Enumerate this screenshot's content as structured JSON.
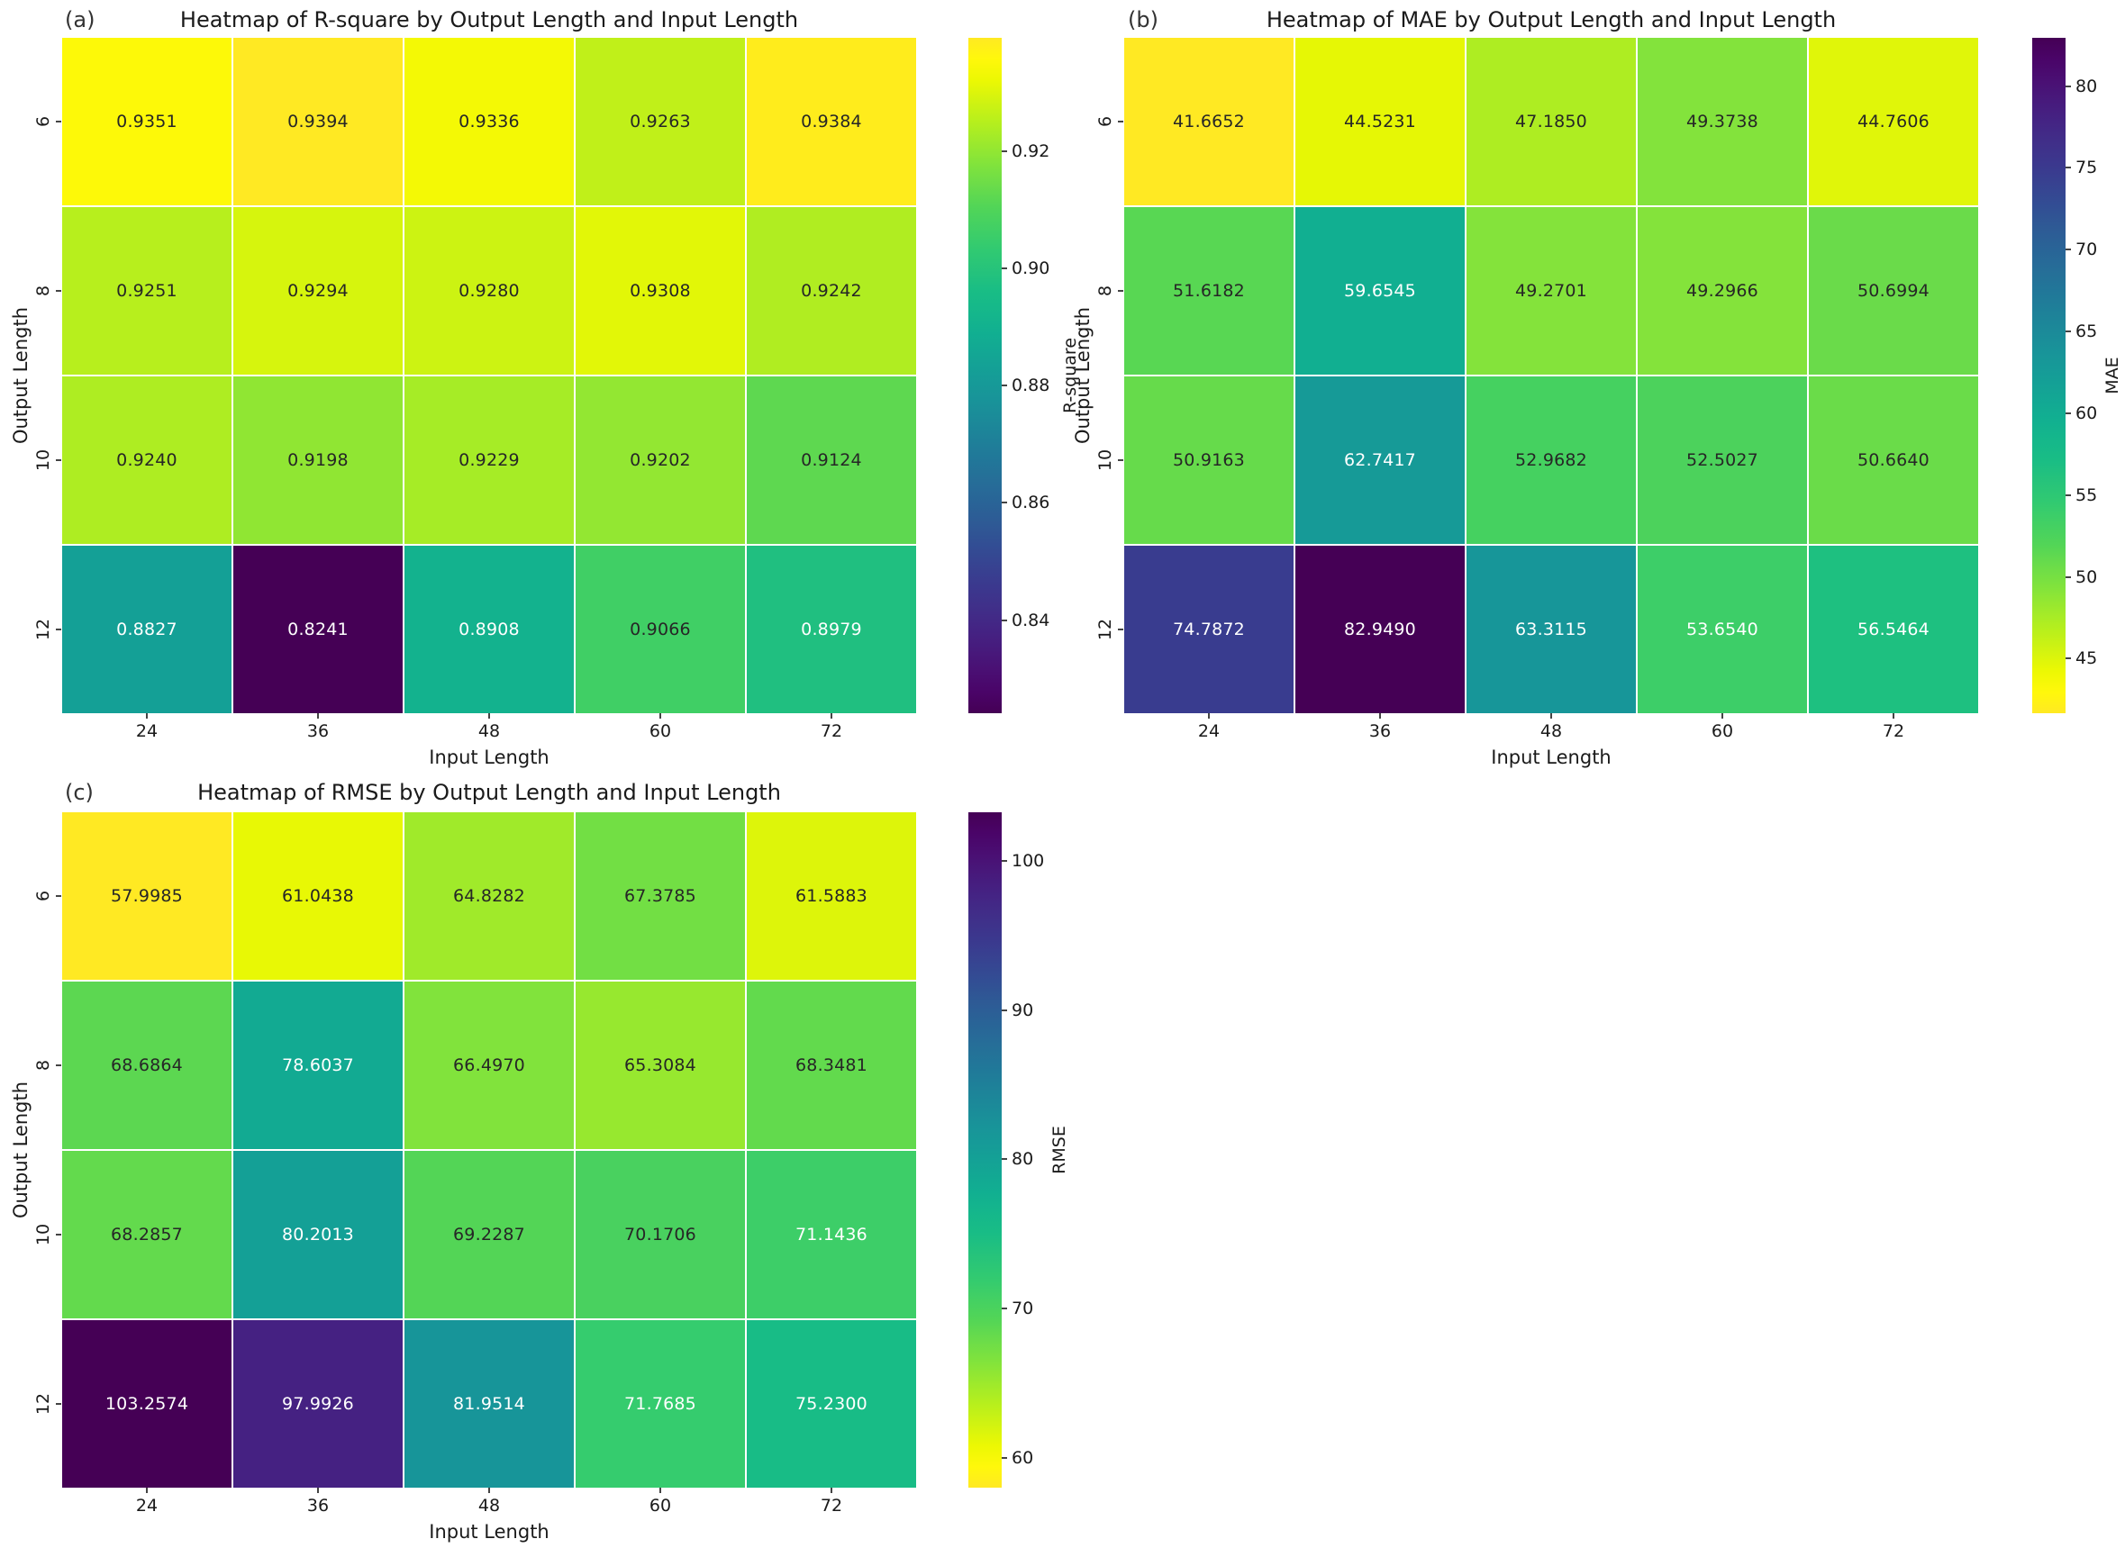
{
  "figure": {
    "background": "#ffffff"
  },
  "colors": {
    "annotation_dark": "#262626",
    "annotation_light": "#ffffff",
    "colormap_low": "#440154",
    "colormap_high": "#fde725"
  },
  "chart_data": [
    {
      "type": "heatmap",
      "panel_label": "(a)",
      "title": "Heatmap of R-square by Output Length and Input Length",
      "xlabel": "Input Length",
      "ylabel": "Output Length",
      "x_categories": [
        "24",
        "36",
        "48",
        "60",
        "72"
      ],
      "y_categories": [
        "6",
        "8",
        "10",
        "12"
      ],
      "values": [
        [
          "0.9351",
          "0.9394",
          "0.9336",
          "0.9263",
          "0.9384"
        ],
        [
          "0.9251",
          "0.9294",
          "0.9280",
          "0.9308",
          "0.9242"
        ],
        [
          "0.9240",
          "0.9198",
          "0.9229",
          "0.9202",
          "0.9124"
        ],
        [
          "0.8827",
          "0.8241",
          "0.8908",
          "0.9066",
          "0.8979"
        ]
      ],
      "vmin": 0.8241,
      "vmax": 0.9394,
      "colormap": "viridis",
      "colormap_reversed": false,
      "colorbar_label": "R-square",
      "colorbar_ticks": [
        "0.92",
        "0.90",
        "0.88",
        "0.86",
        "0.84"
      ]
    },
    {
      "type": "heatmap",
      "panel_label": "(b)",
      "title": "Heatmap of MAE by Output Length and Input Length",
      "xlabel": "Input Length",
      "ylabel": "Output Length",
      "x_categories": [
        "24",
        "36",
        "48",
        "60",
        "72"
      ],
      "y_categories": [
        "6",
        "8",
        "10",
        "12"
      ],
      "values": [
        [
          "41.6652",
          "44.5231",
          "47.1850",
          "49.3738",
          "44.7606"
        ],
        [
          "51.6182",
          "59.6545",
          "49.2701",
          "49.2966",
          "50.6994"
        ],
        [
          "50.9163",
          "62.7417",
          "52.9682",
          "52.5027",
          "50.6640"
        ],
        [
          "74.7872",
          "82.9490",
          "63.3115",
          "53.6540",
          "56.5464"
        ]
      ],
      "vmin": 41.6652,
      "vmax": 82.949,
      "colormap": "viridis",
      "colormap_reversed": true,
      "colorbar_label": "MAE",
      "colorbar_ticks": [
        "80",
        "75",
        "70",
        "65",
        "60",
        "55",
        "50",
        "45"
      ]
    },
    {
      "type": "heatmap",
      "panel_label": "(c)",
      "title": "Heatmap of RMSE by Output Length and Input Length",
      "xlabel": "Input Length",
      "ylabel": "Output Length",
      "x_categories": [
        "24",
        "36",
        "48",
        "60",
        "72"
      ],
      "y_categories": [
        "6",
        "8",
        "10",
        "12"
      ],
      "values": [
        [
          "57.9985",
          "61.0438",
          "64.8282",
          "67.3785",
          "61.5883"
        ],
        [
          "68.6864",
          "78.6037",
          "66.4970",
          "65.3084",
          "68.3481"
        ],
        [
          "68.2857",
          "80.2013",
          "69.2287",
          "70.1706",
          "71.1436"
        ],
        [
          "103.2574",
          "97.9926",
          "81.9514",
          "71.7685",
          "75.2300"
        ]
      ],
      "vmin": 57.9985,
      "vmax": 103.2574,
      "colormap": "viridis",
      "colormap_reversed": true,
      "colorbar_label": "RMSE",
      "colorbar_ticks": [
        "100",
        "90",
        "80",
        "70",
        "60"
      ]
    }
  ]
}
